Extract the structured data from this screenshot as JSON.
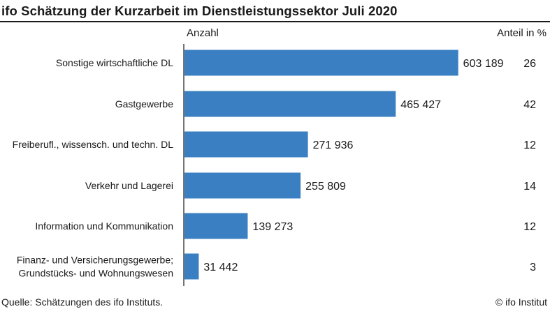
{
  "title": "ifo Schätzung der Kurzarbeit im Dienstleistungssektor Juli 2020",
  "col_head_left": "Anzahl",
  "col_head_right": "Anteil in %",
  "source": "Quelle: Schätzungen des ifo Instituts.",
  "copyright": "© ifo Institut",
  "colors": {
    "bar": "#3a7fc1",
    "text": "#1a1a1a",
    "axis": "#1a1a1a"
  },
  "chart_data": {
    "type": "bar",
    "orientation": "horizontal",
    "categories": [
      [
        "Sonstige wirtschaftliche DL"
      ],
      [
        "Gastgewerbe"
      ],
      [
        "Freiberufl., wissensch. und techn. DL"
      ],
      [
        "Verkehr und Lagerei"
      ],
      [
        "Information und Kommunikation"
      ],
      [
        "Finanz- und Versicherungsgewerbe;",
        "Grundstücks- und Wohnungswesen"
      ]
    ],
    "values": [
      603189,
      465427,
      271936,
      255809,
      139273,
      31442
    ],
    "value_labels": [
      "603 189",
      "465 427",
      "271 936",
      "255 809",
      "139 273",
      "31 442"
    ],
    "shares": [
      "26",
      "42",
      "12",
      "14",
      "12",
      "3"
    ],
    "xlim": [
      0,
      770000
    ]
  }
}
